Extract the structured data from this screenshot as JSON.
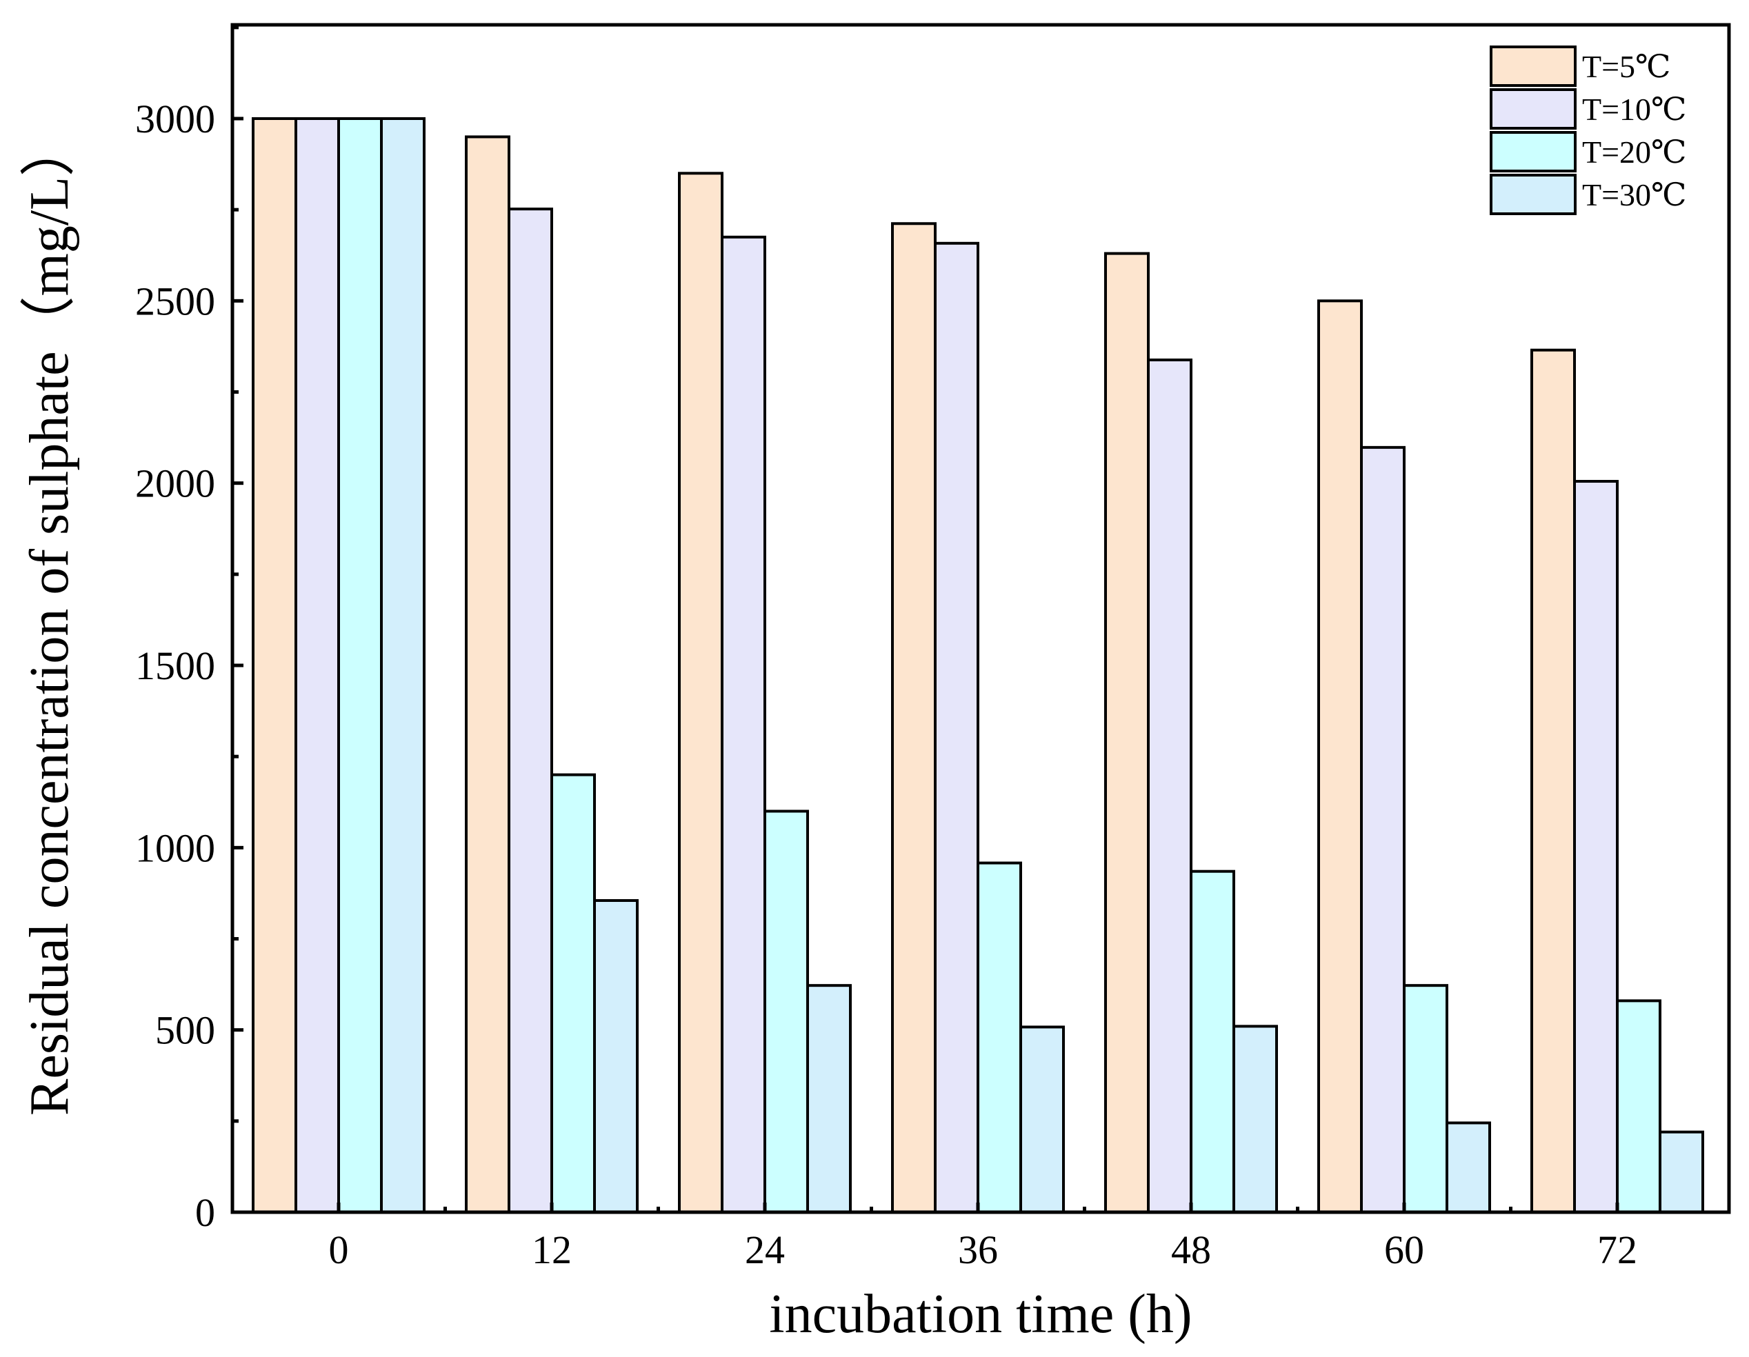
{
  "chart_data": {
    "type": "bar",
    "title": "",
    "xlabel": "incubation time (h)",
    "ylabel": "Residual concentration of sulphate（mg/L）",
    "categories": [
      "0",
      "12",
      "24",
      "36",
      "48",
      "60",
      "72"
    ],
    "yticks": [
      "0",
      "500",
      "1000",
      "1500",
      "2000",
      "2500",
      "3000"
    ],
    "ylim": [
      0,
      3250
    ],
    "grid": false,
    "legend_position": "top-right",
    "series": [
      {
        "name": "T=5℃",
        "color": "#fde5cf",
        "values": [
          3000,
          2950,
          2850,
          2712,
          2630,
          2500,
          2365
        ]
      },
      {
        "name": "T=10℃",
        "color": "#e6e6fa",
        "values": [
          3000,
          2752,
          2675,
          2658,
          2338,
          2098,
          2005
        ]
      },
      {
        "name": "T=20℃",
        "color": "#ccffff",
        "values": [
          3000,
          1200,
          1100,
          958,
          935,
          622,
          580
        ]
      },
      {
        "name": "T=30℃",
        "color": "#d3effc",
        "values": [
          3000,
          855,
          622,
          508,
          510,
          245,
          220
        ]
      }
    ]
  }
}
